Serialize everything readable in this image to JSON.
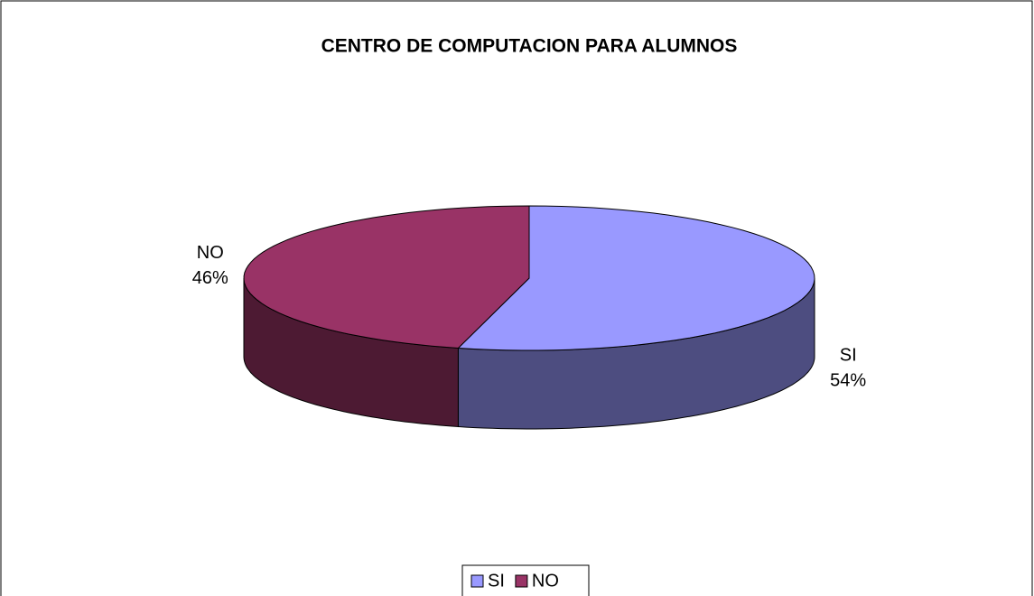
{
  "chart_data": {
    "type": "pie3d",
    "title": "CENTRO DE COMPUTACION PARA ALUMNOS",
    "categories": [
      "SI",
      "NO"
    ],
    "values": [
      54,
      46
    ],
    "value_labels": [
      "54%",
      "46%"
    ],
    "colors": [
      "#9999ff",
      "#993366"
    ],
    "legend": "bottom"
  }
}
